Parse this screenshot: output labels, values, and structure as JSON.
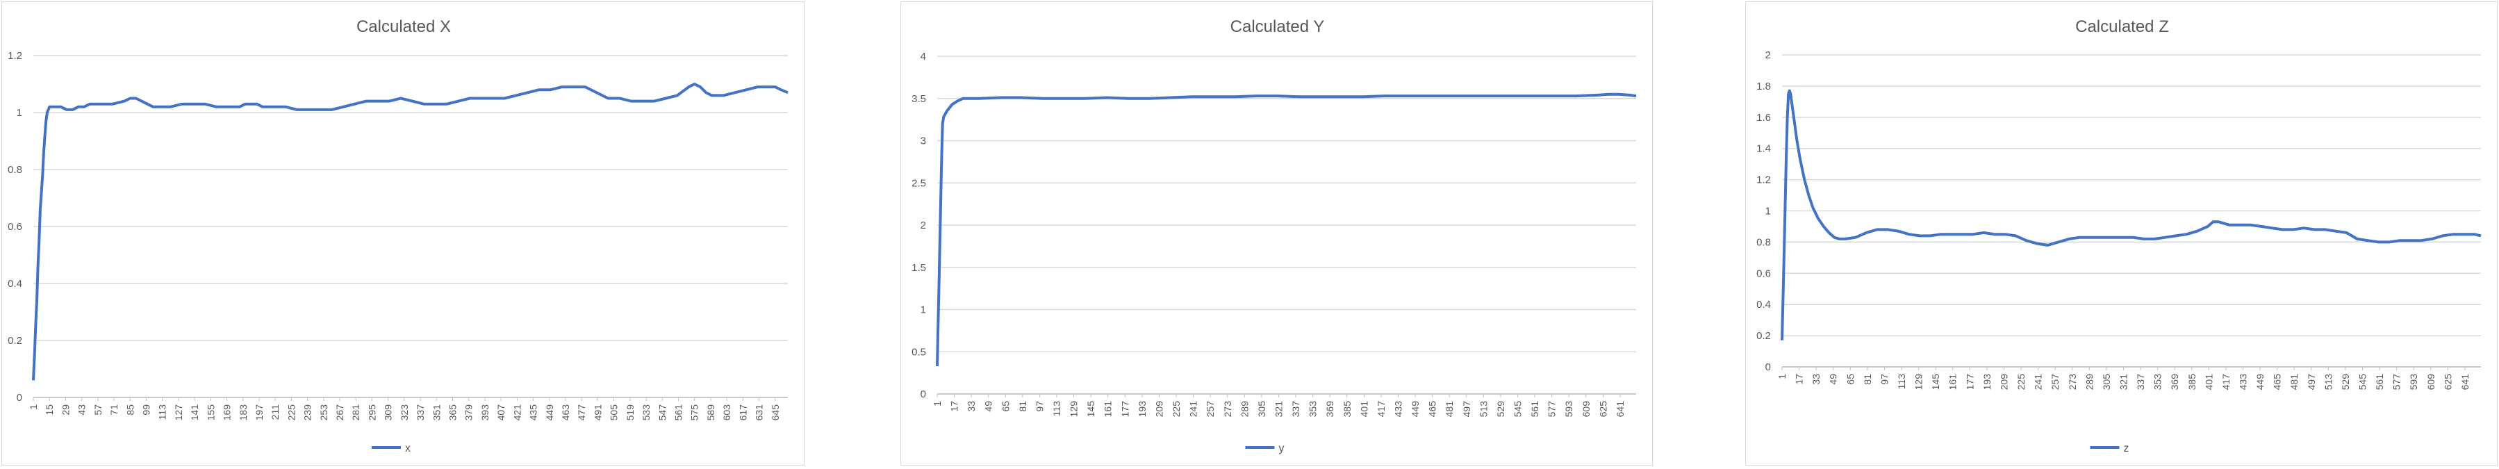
{
  "chart_data": [
    {
      "type": "line",
      "title": "Calculated X",
      "xlabel": "",
      "ylabel": "",
      "ylim": [
        0,
        1.2
      ],
      "yticks": [
        "0",
        "0.2",
        "0.4",
        "0.6",
        "0.8",
        "1",
        "1.2"
      ],
      "x_range": [
        1,
        656
      ],
      "x_tick_start": 1,
      "x_tick_step": 14,
      "grid": true,
      "legend": "bottom",
      "series": [
        {
          "name": "x",
          "color": "#4472C4",
          "points": [
            [
              1,
              0.06
            ],
            [
              2,
              0.15
            ],
            [
              3,
              0.25
            ],
            [
              4,
              0.34
            ],
            [
              5,
              0.46
            ],
            [
              6,
              0.55
            ],
            [
              7,
              0.66
            ],
            [
              8,
              0.72
            ],
            [
              9,
              0.78
            ],
            [
              10,
              0.86
            ],
            [
              11,
              0.92
            ],
            [
              12,
              0.97
            ],
            [
              13,
              1.0
            ],
            [
              15,
              1.02
            ],
            [
              20,
              1.02
            ],
            [
              25,
              1.02
            ],
            [
              30,
              1.01
            ],
            [
              35,
              1.01
            ],
            [
              40,
              1.02
            ],
            [
              45,
              1.02
            ],
            [
              50,
              1.03
            ],
            [
              55,
              1.03
            ],
            [
              60,
              1.03
            ],
            [
              70,
              1.03
            ],
            [
              80,
              1.04
            ],
            [
              85,
              1.05
            ],
            [
              90,
              1.05
            ],
            [
              95,
              1.04
            ],
            [
              100,
              1.03
            ],
            [
              105,
              1.02
            ],
            [
              110,
              1.02
            ],
            [
              115,
              1.02
            ],
            [
              120,
              1.02
            ],
            [
              130,
              1.03
            ],
            [
              140,
              1.03
            ],
            [
              150,
              1.03
            ],
            [
              160,
              1.02
            ],
            [
              170,
              1.02
            ],
            [
              180,
              1.02
            ],
            [
              185,
              1.03
            ],
            [
              190,
              1.03
            ],
            [
              195,
              1.03
            ],
            [
              200,
              1.02
            ],
            [
              210,
              1.02
            ],
            [
              220,
              1.02
            ],
            [
              230,
              1.01
            ],
            [
              240,
              1.01
            ],
            [
              250,
              1.01
            ],
            [
              255,
              1.01
            ],
            [
              260,
              1.01
            ],
            [
              270,
              1.02
            ],
            [
              280,
              1.03
            ],
            [
              290,
              1.04
            ],
            [
              300,
              1.04
            ],
            [
              310,
              1.04
            ],
            [
              320,
              1.05
            ],
            [
              330,
              1.04
            ],
            [
              340,
              1.03
            ],
            [
              350,
              1.03
            ],
            [
              360,
              1.03
            ],
            [
              370,
              1.04
            ],
            [
              380,
              1.05
            ],
            [
              390,
              1.05
            ],
            [
              400,
              1.05
            ],
            [
              410,
              1.05
            ],
            [
              420,
              1.06
            ],
            [
              430,
              1.07
            ],
            [
              440,
              1.08
            ],
            [
              450,
              1.08
            ],
            [
              460,
              1.09
            ],
            [
              470,
              1.09
            ],
            [
              480,
              1.09
            ],
            [
              490,
              1.07
            ],
            [
              500,
              1.05
            ],
            [
              510,
              1.05
            ],
            [
              520,
              1.04
            ],
            [
              530,
              1.04
            ],
            [
              540,
              1.04
            ],
            [
              550,
              1.05
            ],
            [
              560,
              1.06
            ],
            [
              570,
              1.09
            ],
            [
              575,
              1.1
            ],
            [
              580,
              1.09
            ],
            [
              585,
              1.07
            ],
            [
              590,
              1.06
            ],
            [
              600,
              1.06
            ],
            [
              610,
              1.07
            ],
            [
              620,
              1.08
            ],
            [
              630,
              1.09
            ],
            [
              640,
              1.09
            ],
            [
              645,
              1.09
            ],
            [
              650,
              1.08
            ],
            [
              656,
              1.07
            ]
          ]
        }
      ]
    },
    {
      "type": "line",
      "title": "Calculated Y",
      "xlabel": "",
      "ylabel": "",
      "ylim": [
        0,
        4
      ],
      "yticks": [
        "0",
        "0.5",
        "1",
        "1.5",
        "2",
        "2.5",
        "3",
        "3.5",
        "4"
      ],
      "x_range": [
        1,
        656
      ],
      "x_tick_start": 1,
      "x_tick_step": 16,
      "grid": true,
      "legend": "bottom",
      "series": [
        {
          "name": "y",
          "color": "#4472C4",
          "points": [
            [
              1,
              0.33
            ],
            [
              2,
              0.9
            ],
            [
              3,
              1.5
            ],
            [
              4,
              2.1
            ],
            [
              5,
              2.7
            ],
            [
              6,
              3.2
            ],
            [
              7,
              3.28
            ],
            [
              10,
              3.35
            ],
            [
              15,
              3.43
            ],
            [
              20,
              3.47
            ],
            [
              25,
              3.5
            ],
            [
              40,
              3.5
            ],
            [
              60,
              3.51
            ],
            [
              80,
              3.51
            ],
            [
              100,
              3.5
            ],
            [
              120,
              3.5
            ],
            [
              140,
              3.5
            ],
            [
              160,
              3.51
            ],
            [
              180,
              3.5
            ],
            [
              200,
              3.5
            ],
            [
              220,
              3.51
            ],
            [
              240,
              3.52
            ],
            [
              260,
              3.52
            ],
            [
              280,
              3.52
            ],
            [
              300,
              3.53
            ],
            [
              320,
              3.53
            ],
            [
              340,
              3.52
            ],
            [
              360,
              3.52
            ],
            [
              380,
              3.52
            ],
            [
              400,
              3.52
            ],
            [
              420,
              3.53
            ],
            [
              440,
              3.53
            ],
            [
              460,
              3.53
            ],
            [
              480,
              3.53
            ],
            [
              500,
              3.53
            ],
            [
              520,
              3.53
            ],
            [
              540,
              3.53
            ],
            [
              560,
              3.53
            ],
            [
              580,
              3.53
            ],
            [
              600,
              3.53
            ],
            [
              620,
              3.54
            ],
            [
              630,
              3.55
            ],
            [
              640,
              3.55
            ],
            [
              650,
              3.54
            ],
            [
              656,
              3.53
            ]
          ]
        }
      ]
    },
    {
      "type": "line",
      "title": "Calculated Z",
      "xlabel": "",
      "ylabel": "",
      "ylim": [
        0,
        2
      ],
      "yticks": [
        "0",
        "0.2",
        "0.4",
        "0.6",
        "0.8",
        "1",
        "1.2",
        "1.4",
        "1.6",
        "1.8",
        "2"
      ],
      "x_range": [
        1,
        656
      ],
      "x_tick_start": 1,
      "x_tick_step": 16,
      "grid": true,
      "legend": "bottom",
      "series": [
        {
          "name": "z",
          "color": "#4472C4",
          "points": [
            [
              1,
              0.17
            ],
            [
              2,
              0.45
            ],
            [
              3,
              0.75
            ],
            [
              4,
              1.05
            ],
            [
              5,
              1.35
            ],
            [
              6,
              1.6
            ],
            [
              7,
              1.75
            ],
            [
              8,
              1.77
            ],
            [
              9,
              1.75
            ],
            [
              10,
              1.7
            ],
            [
              12,
              1.6
            ],
            [
              15,
              1.45
            ],
            [
              18,
              1.33
            ],
            [
              22,
              1.2
            ],
            [
              26,
              1.1
            ],
            [
              30,
              1.02
            ],
            [
              35,
              0.95
            ],
            [
              40,
              0.9
            ],
            [
              45,
              0.86
            ],
            [
              50,
              0.83
            ],
            [
              55,
              0.82
            ],
            [
              60,
              0.82
            ],
            [
              70,
              0.83
            ],
            [
              80,
              0.86
            ],
            [
              90,
              0.88
            ],
            [
              100,
              0.88
            ],
            [
              110,
              0.87
            ],
            [
              120,
              0.85
            ],
            [
              130,
              0.84
            ],
            [
              140,
              0.84
            ],
            [
              150,
              0.85
            ],
            [
              160,
              0.85
            ],
            [
              170,
              0.85
            ],
            [
              180,
              0.85
            ],
            [
              190,
              0.86
            ],
            [
              200,
              0.85
            ],
            [
              210,
              0.85
            ],
            [
              220,
              0.84
            ],
            [
              230,
              0.81
            ],
            [
              240,
              0.79
            ],
            [
              250,
              0.78
            ],
            [
              260,
              0.8
            ],
            [
              270,
              0.82
            ],
            [
              280,
              0.83
            ],
            [
              290,
              0.83
            ],
            [
              300,
              0.83
            ],
            [
              310,
              0.83
            ],
            [
              320,
              0.83
            ],
            [
              330,
              0.83
            ],
            [
              340,
              0.82
            ],
            [
              350,
              0.82
            ],
            [
              360,
              0.83
            ],
            [
              370,
              0.84
            ],
            [
              380,
              0.85
            ],
            [
              390,
              0.87
            ],
            [
              400,
              0.9
            ],
            [
              405,
              0.93
            ],
            [
              410,
              0.93
            ],
            [
              420,
              0.91
            ],
            [
              430,
              0.91
            ],
            [
              440,
              0.91
            ],
            [
              450,
              0.9
            ],
            [
              460,
              0.89
            ],
            [
              470,
              0.88
            ],
            [
              480,
              0.88
            ],
            [
              490,
              0.89
            ],
            [
              500,
              0.88
            ],
            [
              510,
              0.88
            ],
            [
              520,
              0.87
            ],
            [
              530,
              0.86
            ],
            [
              540,
              0.82
            ],
            [
              550,
              0.81
            ],
            [
              560,
              0.8
            ],
            [
              570,
              0.8
            ],
            [
              580,
              0.81
            ],
            [
              590,
              0.81
            ],
            [
              600,
              0.81
            ],
            [
              610,
              0.82
            ],
            [
              620,
              0.84
            ],
            [
              630,
              0.85
            ],
            [
              640,
              0.85
            ],
            [
              650,
              0.85
            ],
            [
              656,
              0.84
            ]
          ]
        }
      ]
    }
  ]
}
